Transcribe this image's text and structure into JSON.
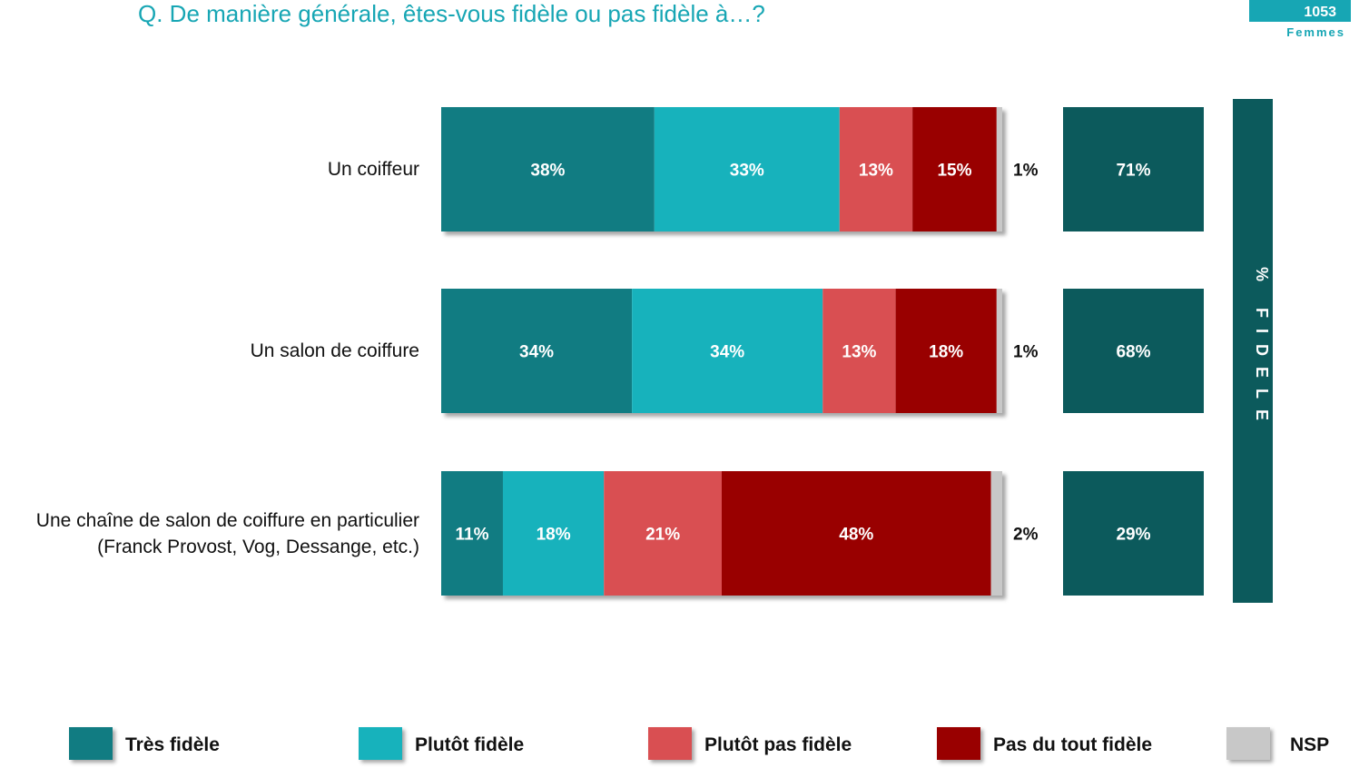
{
  "header": {
    "title": "Q. De manière générale, êtes-vous fidèle ou pas fidèle à…?",
    "sample_count": "1053",
    "sample_label": "Femmes"
  },
  "fidele_label": "% FIDELE",
  "colors": {
    "tres_fidele": "#117c82",
    "plutot_fidele": "#17b2bc",
    "plutot_pas_fidele": "#d94f52",
    "pas_du_tout_fidele": "#990000",
    "nsp": "#c8c8c8",
    "fidele_total": "#0c5a5c",
    "title": "#17a6b4"
  },
  "chart_data": {
    "type": "bar",
    "orientation": "horizontal",
    "stacked": true,
    "categories": [
      [
        "Un coiffeur"
      ],
      [
        "Un salon de coiffure"
      ],
      [
        "Une chaîne de salon de coiffure en particulier",
        "(Franck Provost, Vog, Dessange, etc.)"
      ]
    ],
    "series": [
      {
        "name": "Très fidèle",
        "color": "#117c82",
        "values": [
          38,
          34,
          11
        ]
      },
      {
        "name": "Plutôt fidèle",
        "color": "#17b2bc",
        "values": [
          33,
          34,
          18
        ]
      },
      {
        "name": "Plutôt pas fidèle",
        "color": "#d94f52",
        "values": [
          13,
          13,
          21
        ]
      },
      {
        "name": "Pas du tout fidèle",
        "color": "#990000",
        "values": [
          15,
          18,
          48
        ]
      },
      {
        "name": "NSP",
        "color": "#c8c8c8",
        "values": [
          1,
          1,
          2
        ]
      }
    ],
    "fidele_totals": [
      71,
      68,
      29
    ],
    "unit": "%",
    "legend_position": "bottom"
  }
}
